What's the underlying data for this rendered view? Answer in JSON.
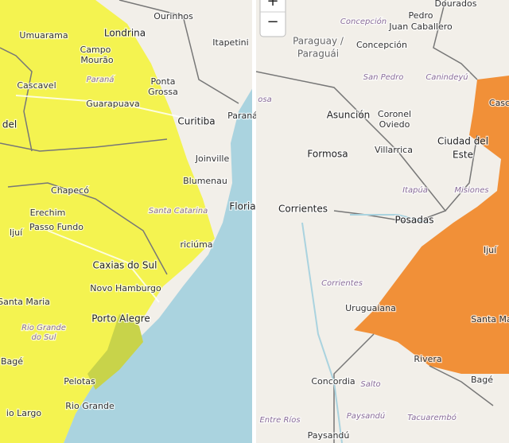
{
  "left_map": {
    "labels": [
      "Ourinhos",
      "Londrina",
      "Itapetini",
      "Umuarama",
      "Campo",
      "Mourão",
      "Paraná",
      "Ponta",
      "Grossa",
      "Cascavel",
      "Guarapuava",
      "Curitiba",
      "Paraná",
      "del",
      "Joinville",
      "Blumenau",
      "Floria",
      "Chapecó",
      "Santa Catarina",
      "Erechim",
      "Passo Fundo",
      "Ijuí",
      "riciúma",
      "Caxias do Sul",
      "Novo Hamburgo",
      "Santa Maria",
      "Porto Alegre",
      "Rio Grande",
      "do Sul",
      "Bagé",
      "Pelotas",
      "Rio Grande",
      "io Largo"
    ]
  },
  "right_map": {
    "zoom_in": "+",
    "zoom_out": "−",
    "labels": [
      "Dourados",
      "Concepción",
      "Pedro",
      "Juan Caballero",
      "Paraguay /",
      "Paraguái",
      "Concepción",
      "San Pedro",
      "Canindeyú",
      "Casc",
      "osa",
      "Asunción",
      "Coronel",
      "Oviedo",
      "Ciudad del",
      "Este",
      "Formosa",
      "Villarrica",
      "Itapúa",
      "Misiones",
      "Corrientes",
      "Posadas",
      "Ijuí",
      "Corrientes",
      "Uruguaiana",
      "Santa Ma",
      "Rivera",
      "Bagé",
      "Concordia",
      "Salto",
      "Entre Ríos",
      "Paysandú",
      "Tacuarembó",
      "Paysandú"
    ]
  }
}
